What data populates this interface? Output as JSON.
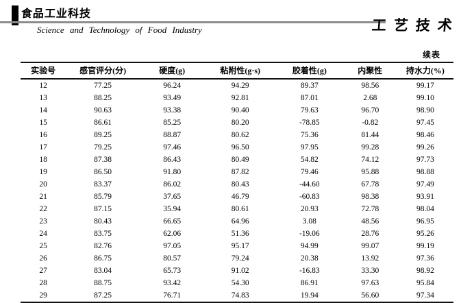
{
  "masthead": {
    "journal_logo": "食品工业科技",
    "journal_name_en": "Science and Technology of Food Industry",
    "section_label": "工艺技术"
  },
  "continued_label": "续表",
  "table": {
    "columns": [
      "实验号",
      "感官评分(分)",
      "硬度(g)",
      "粘附性(g·s)",
      "胶着性(g)",
      "内聚性",
      "持水力(%)"
    ],
    "rows": [
      [
        "12",
        "77.25",
        "96.24",
        "94.29",
        "89.37",
        "98.56",
        "99.17"
      ],
      [
        "13",
        "88.25",
        "93.49",
        "92.81",
        "87.01",
        "2.68",
        "99.10"
      ],
      [
        "14",
        "90.63",
        "93.38",
        "90.40",
        "79.63",
        "96.70",
        "98.90"
      ],
      [
        "15",
        "86.61",
        "85.25",
        "80.20",
        "-78.85",
        "-0.82",
        "97.45"
      ],
      [
        "16",
        "89.25",
        "88.87",
        "80.62",
        "75.36",
        "81.44",
        "98.46"
      ],
      [
        "17",
        "79.25",
        "97.46",
        "96.50",
        "97.95",
        "99.28",
        "99.26"
      ],
      [
        "18",
        "87.38",
        "86.43",
        "80.49",
        "54.82",
        "74.12",
        "97.73"
      ],
      [
        "19",
        "86.50",
        "91.80",
        "87.82",
        "79.46",
        "95.88",
        "98.88"
      ],
      [
        "20",
        "83.37",
        "86.02",
        "80.43",
        "-44.60",
        "67.78",
        "97.49"
      ],
      [
        "21",
        "85.79",
        "37.65",
        "46.79",
        "-60.83",
        "98.38",
        "93.91"
      ],
      [
        "22",
        "87.15",
        "35.94",
        "80.61",
        "20.93",
        "72.78",
        "98.04"
      ],
      [
        "23",
        "80.43",
        "66.65",
        "64.96",
        "3.08",
        "48.56",
        "96.95"
      ],
      [
        "24",
        "83.75",
        "62.06",
        "51.36",
        "-19.06",
        "28.76",
        "95.26"
      ],
      [
        "25",
        "82.76",
        "97.05",
        "95.17",
        "94.99",
        "99.07",
        "99.19"
      ],
      [
        "26",
        "86.75",
        "80.57",
        "79.24",
        "20.38",
        "13.92",
        "97.36"
      ],
      [
        "27",
        "83.04",
        "65.73",
        "91.02",
        "-16.83",
        "33.30",
        "98.92"
      ],
      [
        "28",
        "88.75",
        "93.42",
        "54.30",
        "86.91",
        "97.63",
        "95.84"
      ],
      [
        "29",
        "87.25",
        "76.71",
        "74.83",
        "19.94",
        "56.60",
        "97.34"
      ]
    ]
  }
}
